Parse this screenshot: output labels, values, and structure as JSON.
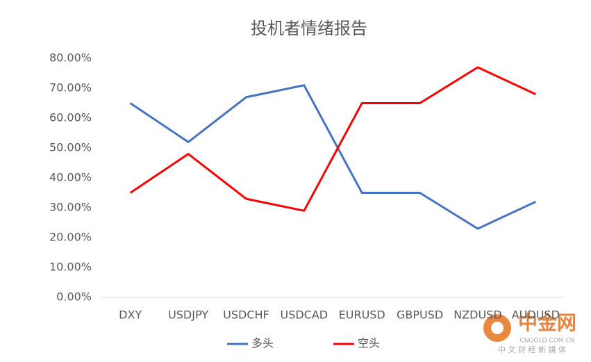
{
  "chart_data": {
    "type": "line",
    "title": "投机者情绪报告",
    "categories": [
      "DXY",
      "USDJPY",
      "USDCHF",
      "USDCAD",
      "EURUSD",
      "GBPUSD",
      "NZDUSD",
      "AUDUSD"
    ],
    "series": [
      {
        "name": "多头",
        "color": "#4472c4",
        "values": [
          65,
          52,
          67,
          71,
          35,
          35,
          23,
          32
        ]
      },
      {
        "name": "空头",
        "color": "#ff0000",
        "values": [
          35,
          48,
          33,
          29,
          65,
          65,
          77,
          68
        ]
      }
    ],
    "ylim": [
      0,
      80
    ],
    "yticks": [
      {
        "value": 0,
        "label": "0.00%"
      },
      {
        "value": 10,
        "label": "10.00%"
      },
      {
        "value": 20,
        "label": "20.00%"
      },
      {
        "value": 30,
        "label": "30.00%"
      },
      {
        "value": 40,
        "label": "40.00%"
      },
      {
        "value": 50,
        "label": "50.00%"
      },
      {
        "value": 60,
        "label": "60.00%"
      },
      {
        "value": 70,
        "label": "70.00%"
      },
      {
        "value": 80,
        "label": "80.00%"
      }
    ],
    "grid": false,
    "legend": "bottom",
    "watermark": {
      "name": "中金网",
      "url": "CNGOLD.COM.CN",
      "tagline": "中 文 财 经 新 媒 体"
    }
  }
}
